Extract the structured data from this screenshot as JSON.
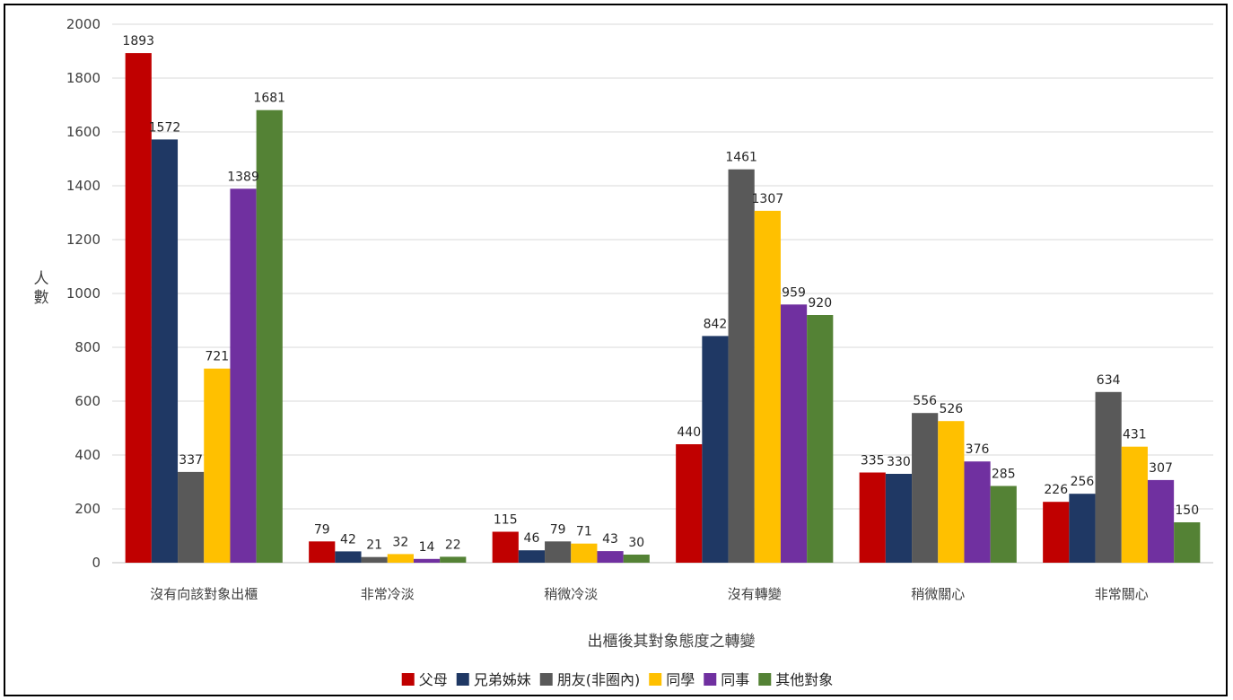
{
  "chart_data": {
    "type": "bar",
    "xlabel": "出櫃後其對象態度之轉變",
    "ylabel": "人數",
    "ylim": [
      0,
      2000
    ],
    "yticks": [
      0,
      200,
      400,
      600,
      800,
      1000,
      1200,
      1400,
      1600,
      1800,
      2000
    ],
    "grid": true,
    "legend_position": "bottom",
    "categories": [
      "沒有向該對象出櫃",
      "非常冷淡",
      "稍微冷淡",
      "沒有轉變",
      "稍微關心",
      "非常關心"
    ],
    "series": [
      {
        "name": "父母",
        "color": "#C00000",
        "values": [
          1893,
          79,
          115,
          440,
          335,
          226
        ]
      },
      {
        "name": "兄弟姊妹",
        "color": "#1F3864",
        "values": [
          1572,
          42,
          46,
          842,
          330,
          256
        ]
      },
      {
        "name": "朋友(非圈內)",
        "color": "#595959",
        "values": [
          337,
          21,
          79,
          1461,
          556,
          634
        ]
      },
      {
        "name": "同學",
        "color": "#FFC000",
        "values": [
          721,
          32,
          71,
          1307,
          526,
          431
        ]
      },
      {
        "name": "同事",
        "color": "#7030A0",
        "values": [
          1389,
          14,
          43,
          959,
          376,
          307
        ]
      },
      {
        "name": "其他對象",
        "color": "#548235",
        "values": [
          1681,
          22,
          30,
          920,
          285,
          150
        ]
      }
    ]
  }
}
